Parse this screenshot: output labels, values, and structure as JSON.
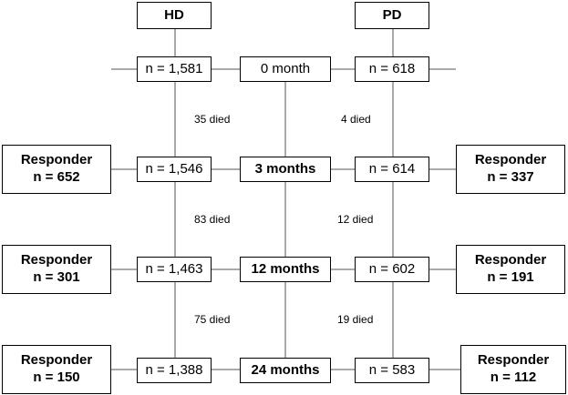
{
  "headers": {
    "hd": "HD",
    "pd": "PD"
  },
  "timepoints": {
    "t0": "0 month",
    "t3": "3 months",
    "t12": "12 months",
    "t24": "24 months"
  },
  "hd": {
    "counts": {
      "t0": "n = 1,581",
      "t3": "n = 1,546",
      "t12": "n = 1,463",
      "t24": "n = 1,388"
    },
    "died": {
      "d1": "35 died",
      "d2": "83 died",
      "d3": "75 died"
    },
    "responders": {
      "t3": {
        "label": "Responder",
        "n": "n = 652"
      },
      "t12": {
        "label": "Responder",
        "n": "n = 301"
      },
      "t24": {
        "label": "Responder",
        "n": "n = 150"
      }
    }
  },
  "pd": {
    "counts": {
      "t0": "n = 618",
      "t3": "n = 614",
      "t12": "n = 602",
      "t24": "n = 583"
    },
    "died": {
      "d1": "4 died",
      "d2": "12 died",
      "d3": "19 died"
    },
    "responders": {
      "t3": {
        "label": "Responder",
        "n": "n = 337"
      },
      "t12": {
        "label": "Responder",
        "n": "n = 191"
      },
      "t24": {
        "label": "Responder",
        "n": "n = 112"
      }
    }
  },
  "colors": {
    "line": "#555555",
    "border": "#000000",
    "text": "#000000"
  }
}
